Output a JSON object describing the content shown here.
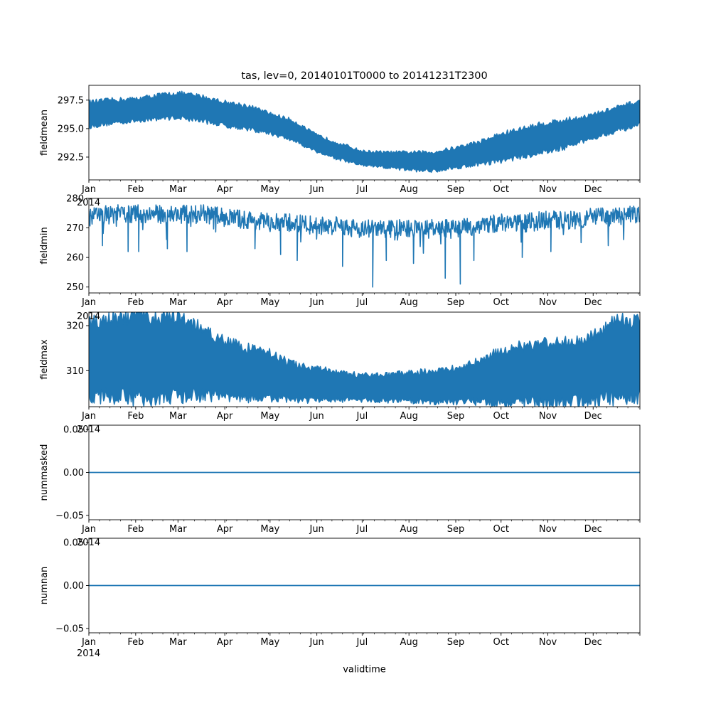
{
  "chart_data": {
    "type": "line",
    "title": "tas, lev=0, 20140101T0000 to 20141231T2300",
    "xlabel": "validtime",
    "x_year_label": "2014",
    "month_labels": [
      "Jan",
      "Feb",
      "Mar",
      "Apr",
      "May",
      "Jun",
      "Jul",
      "Aug",
      "Sep",
      "Oct",
      "Nov",
      "Dec"
    ],
    "month_day_offsets": [
      0,
      31,
      59,
      90,
      120,
      151,
      181,
      212,
      243,
      273,
      304,
      334
    ],
    "xlim_days": [
      0,
      364.96
    ],
    "line_color": "#1f77b4",
    "panels": [
      {
        "name": "fieldmean",
        "ylabel": "fieldmean",
        "style": "band",
        "ylim": [
          290.5,
          298.8
        ],
        "yticks": [
          292.5,
          295.0,
          297.5
        ],
        "ytick_labels": [
          "292.5",
          "295.0",
          "297.5"
        ],
        "overlap_label": "",
        "series": {
          "x": [
            0,
            15,
            31,
            45,
            59,
            75,
            90,
            105,
            120,
            135,
            151,
            166,
            181,
            196,
            212,
            227,
            243,
            258,
            273,
            288,
            304,
            319,
            334,
            349,
            365
          ],
          "low": [
            295.2,
            295.5,
            295.7,
            295.9,
            296.0,
            295.7,
            295.3,
            295.0,
            294.6,
            294.0,
            293.0,
            292.3,
            291.8,
            291.6,
            291.4,
            291.3,
            291.6,
            291.9,
            292.2,
            292.6,
            293.0,
            293.5,
            294.2,
            294.8,
            295.3
          ],
          "high": [
            297.3,
            297.5,
            297.6,
            297.9,
            298.1,
            297.8,
            297.3,
            297.0,
            296.3,
            295.7,
            294.4,
            293.7,
            293.0,
            292.9,
            292.9,
            292.9,
            293.3,
            293.8,
            294.5,
            295.0,
            295.5,
            295.8,
            296.2,
            296.8,
            297.4
          ]
        }
      },
      {
        "name": "fieldmin",
        "ylabel": "fieldmin",
        "style": "spiky",
        "ylim": [
          248.0,
          280.0
        ],
        "yticks": [
          250,
          260,
          270,
          280
        ],
        "ytick_labels": [
          "250",
          "260",
          "270",
          "280"
        ],
        "overlap_label": "2014",
        "series": {
          "x": [
            0,
            15,
            31,
            45,
            59,
            75,
            90,
            105,
            120,
            135,
            151,
            166,
            181,
            196,
            212,
            227,
            243,
            258,
            273,
            288,
            304,
            319,
            334,
            349,
            365
          ],
          "base": [
            274,
            275,
            275,
            275,
            275,
            275,
            274,
            273,
            272,
            272,
            271,
            271,
            270,
            270,
            270,
            270,
            270,
            271,
            272,
            272,
            273,
            273,
            274,
            274,
            275
          ],
          "amp": [
            4,
            4,
            4,
            4,
            4,
            4,
            4,
            4,
            4,
            4,
            4,
            4,
            4,
            4,
            4,
            4,
            4,
            4,
            4,
            4,
            4,
            4,
            4,
            4,
            4
          ],
          "dips": [
            [
              9,
              264
            ],
            [
              26,
              262
            ],
            [
              33,
              262
            ],
            [
              52,
              263
            ],
            [
              65,
              262
            ],
            [
              110,
              263
            ],
            [
              127,
              261
            ],
            [
              138,
              259
            ],
            [
              168,
              257
            ],
            [
              188,
              250
            ],
            [
              197,
              259
            ],
            [
              215,
              258
            ],
            [
              236,
              253
            ],
            [
              246,
              251
            ],
            [
              255,
              259
            ],
            [
              287,
              260
            ],
            [
              306,
              262
            ],
            [
              326,
              265
            ],
            [
              344,
              264
            ]
          ]
        }
      },
      {
        "name": "fieldmax",
        "ylabel": "fieldmax",
        "style": "band",
        "ylim": [
          302.0,
          323.0
        ],
        "yticks": [
          310,
          320
        ],
        "ytick_labels": [
          "310",
          "320"
        ],
        "overlap_label": "2014",
        "series": {
          "x": [
            0,
            15,
            31,
            45,
            59,
            75,
            90,
            105,
            120,
            135,
            151,
            166,
            181,
            196,
            212,
            227,
            243,
            258,
            273,
            288,
            304,
            319,
            334,
            349,
            365
          ],
          "low": [
            304.5,
            304.2,
            304.0,
            304.0,
            304.2,
            304.5,
            304.5,
            304.0,
            303.8,
            303.6,
            303.5,
            303.5,
            303.5,
            303.4,
            303.3,
            303.2,
            303.2,
            303.2,
            303.0,
            303.0,
            303.0,
            303.2,
            303.5,
            304.0,
            304.5
          ],
          "high": [
            320.5,
            321.5,
            322.0,
            322.0,
            321.5,
            319.5,
            316.5,
            315.0,
            314.0,
            311.5,
            310.5,
            309.5,
            309.0,
            309.0,
            309.5,
            310.0,
            310.5,
            312.0,
            314.5,
            315.5,
            316.0,
            316.5,
            317.5,
            321.0,
            321.5
          ]
        }
      },
      {
        "name": "nummasked",
        "ylabel": "nummasked",
        "style": "flat",
        "ylim": [
          -0.055,
          0.055
        ],
        "yticks": [
          -0.05,
          0.0,
          0.05
        ],
        "ytick_labels": [
          "−0.05",
          "0.00",
          "0.05"
        ],
        "overlap_label": "2014",
        "series": {
          "x": [
            0,
            365
          ],
          "y": [
            0,
            0
          ]
        }
      },
      {
        "name": "numnan",
        "ylabel": "numnan",
        "style": "flat",
        "ylim": [
          -0.055,
          0.055
        ],
        "yticks": [
          -0.05,
          0.0,
          0.05
        ],
        "ytick_labels": [
          "−0.05",
          "0.00",
          "0.05"
        ],
        "overlap_label": "2014",
        "series": {
          "x": [
            0,
            365
          ],
          "y": [
            0,
            0
          ]
        }
      }
    ]
  }
}
